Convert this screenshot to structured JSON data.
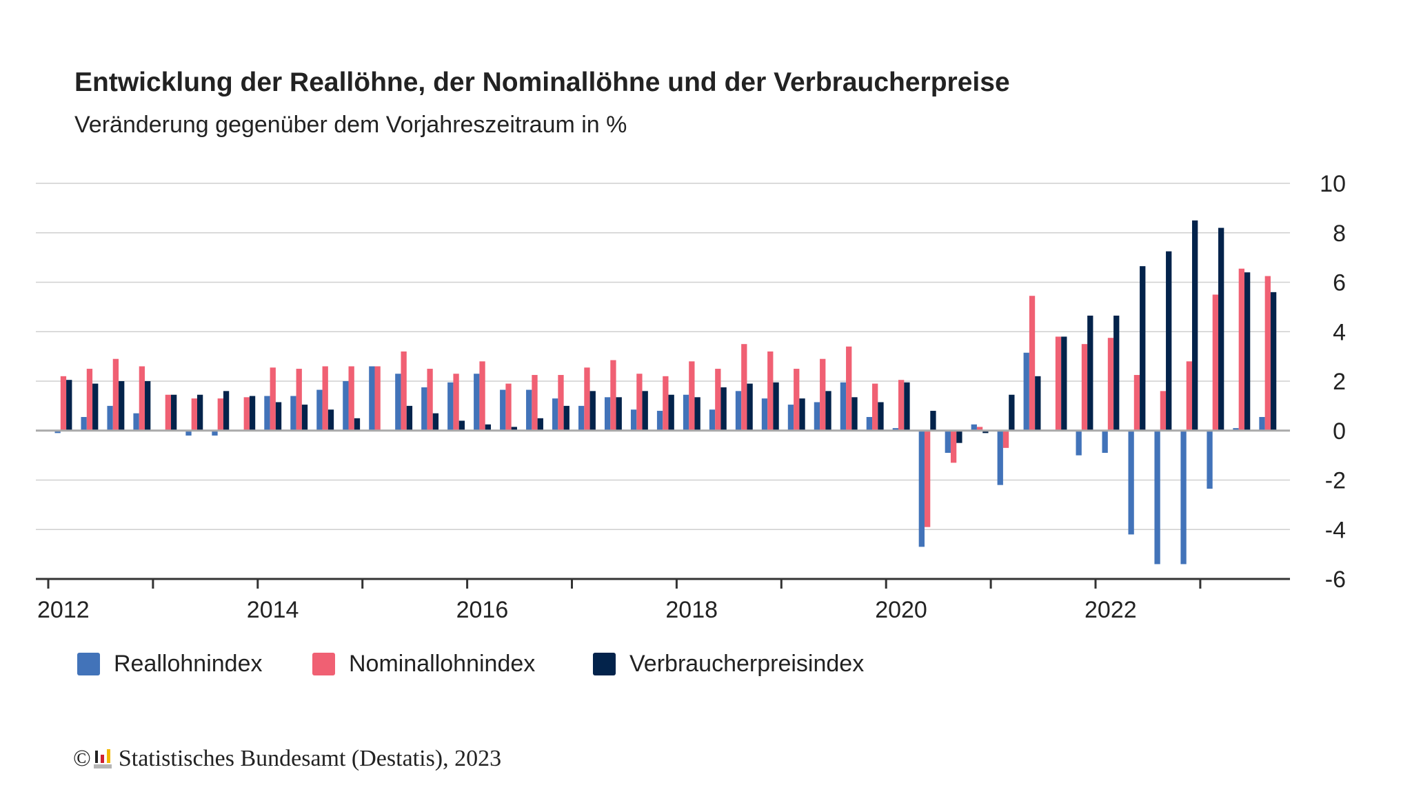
{
  "title": "Entwicklung der Reallöhne, der Nominallöhne und der Verbraucherpreise",
  "subtitle": "Veränderung gegenüber dem Vorjahreszeitraum in %",
  "footer": {
    "copyright": "©",
    "source": "Statistisches Bundesamt (Destatis), 2023"
  },
  "colors": {
    "real": "#4273b9",
    "nominal": "#f06073",
    "cpi": "#03234b"
  },
  "chart_data": {
    "type": "bar",
    "title": "Entwicklung der Reallöhne, der Nominallöhne und der Verbraucherpreise",
    "ylabel": "Veränderung gegenüber dem Vorjahreszeitraum in %",
    "xlabel": "",
    "ylim": [
      -6,
      10
    ],
    "yticks": [
      "10",
      "8",
      "6",
      "4",
      "2",
      "0",
      "-2",
      "-4",
      "-6"
    ],
    "xtick_labels": [
      "2012",
      "2014",
      "2016",
      "2018",
      "2020",
      "2022"
    ],
    "x_start": "2012 Q1",
    "x_period": "quarter",
    "grid": true,
    "legend_position": "bottom-left",
    "series": [
      {
        "name": "Reallohnindex",
        "values": [
          -0.1,
          0.55,
          1.0,
          0.7,
          0,
          -0.2,
          -0.2,
          0,
          1.4,
          1.4,
          1.65,
          2.0,
          2.6,
          2.3,
          1.75,
          1.95,
          2.3,
          1.65,
          1.65,
          1.3,
          1.0,
          1.35,
          0.85,
          0.8,
          1.45,
          0.85,
          1.6,
          1.3,
          1.05,
          1.15,
          1.95,
          0.55,
          0.1,
          -4.7,
          -0.9,
          0.25,
          -2.2,
          3.15,
          0,
          -1.0,
          -0.9,
          -4.2,
          -5.4,
          -5.4,
          -2.35,
          0.1,
          0.55
        ]
      },
      {
        "name": "Nominallohnindex",
        "values": [
          2.2,
          2.5,
          2.9,
          2.6,
          1.45,
          1.3,
          1.3,
          1.35,
          2.55,
          2.5,
          2.6,
          2.6,
          2.6,
          3.2,
          2.5,
          2.3,
          2.8,
          1.9,
          2.25,
          2.25,
          2.55,
          2.85,
          2.3,
          2.2,
          2.8,
          2.5,
          3.5,
          3.2,
          2.5,
          2.9,
          3.4,
          1.9,
          2.05,
          -3.9,
          -1.3,
          0.15,
          -0.7,
          5.45,
          3.8,
          3.5,
          3.75,
          2.25,
          1.6,
          2.8,
          5.5,
          6.55,
          6.25
        ]
      },
      {
        "name": "Verbraucherpreisindex",
        "values": [
          2.05,
          1.9,
          2.0,
          2.0,
          1.45,
          1.45,
          1.6,
          1.4,
          1.15,
          1.05,
          0.85,
          0.5,
          0,
          1.0,
          0.7,
          0.4,
          0.25,
          0.15,
          0.5,
          1.0,
          1.6,
          1.35,
          1.6,
          1.45,
          1.35,
          1.75,
          1.9,
          1.95,
          1.3,
          1.6,
          1.35,
          1.15,
          1.95,
          0.8,
          -0.5,
          -0.1,
          1.45,
          2.2,
          3.8,
          4.65,
          4.65,
          6.65,
          7.25,
          8.5,
          8.2,
          6.4,
          5.6
        ]
      }
    ]
  }
}
